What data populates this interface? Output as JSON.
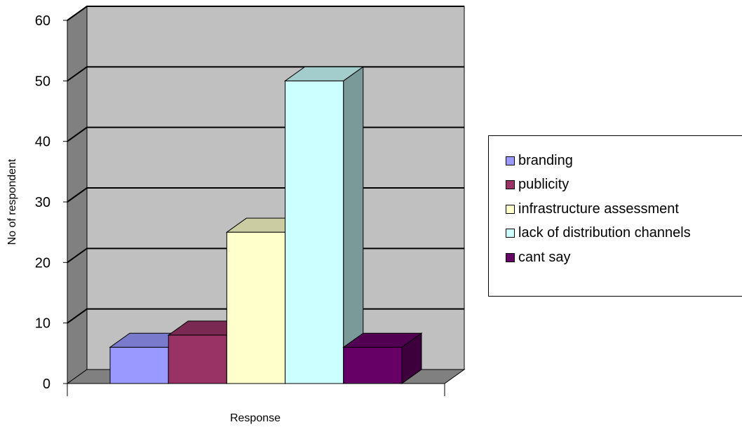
{
  "chart_data": {
    "type": "bar",
    "title": "",
    "xlabel": "Response",
    "ylabel": "No of respondent",
    "ylim": [
      0,
      60
    ],
    "yticks": [
      0,
      10,
      20,
      30,
      40,
      50,
      60
    ],
    "grid": true,
    "legend_position": "right",
    "series": [
      {
        "name": "branding",
        "value": 6,
        "color": "#9999ff"
      },
      {
        "name": "publicity",
        "value": 8,
        "color": "#993366"
      },
      {
        "name": "infrastructure assessment",
        "value": 25,
        "color": "#ffffcc"
      },
      {
        "name": "lack of distribution channels",
        "value": 50,
        "color": "#ccffff"
      },
      {
        "name": "cant say",
        "value": 6,
        "color": "#660066"
      }
    ],
    "colors": {
      "wall": "#c0c0c0",
      "side_wall": "#808080",
      "floor": "#808080",
      "gridline": "#000000"
    }
  }
}
